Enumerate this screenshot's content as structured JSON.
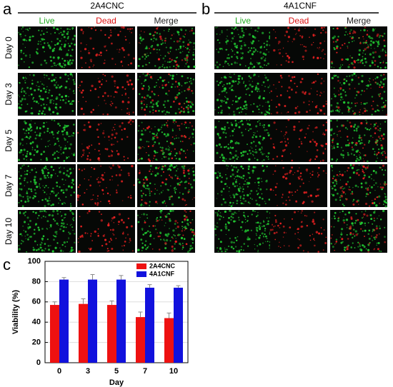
{
  "panels": {
    "a": {
      "label": "a",
      "title": "2A4CNC",
      "columns": [
        "Live",
        "Dead",
        "Merge"
      ],
      "rows": [
        "Day 0",
        "Day 3",
        "Day 5",
        "Day 7",
        "Day 10"
      ]
    },
    "b": {
      "label": "b",
      "title": "4A1CNF",
      "columns": [
        "Live",
        "Dead",
        "Merge"
      ]
    },
    "c": {
      "label": "c"
    }
  },
  "chart_data": {
    "type": "bar",
    "x_label": "Day",
    "y_label": "Viability (%)",
    "categories": [
      "0",
      "3",
      "5",
      "7",
      "10"
    ],
    "series": [
      {
        "name": "2A4CNC",
        "color": "#ee1111",
        "values": [
          57,
          58,
          57,
          45,
          44
        ],
        "errors": [
          3,
          5,
          4,
          5,
          5
        ]
      },
      {
        "name": "4A1CNF",
        "color": "#1111dd",
        "values": [
          82,
          82,
          82,
          74,
          74
        ],
        "errors": [
          2,
          5,
          4,
          3,
          2
        ]
      }
    ],
    "ylim": [
      0,
      100
    ],
    "yticks": [
      0,
      20,
      40,
      60,
      80,
      100
    ],
    "grid": true,
    "legend": "top-right"
  }
}
